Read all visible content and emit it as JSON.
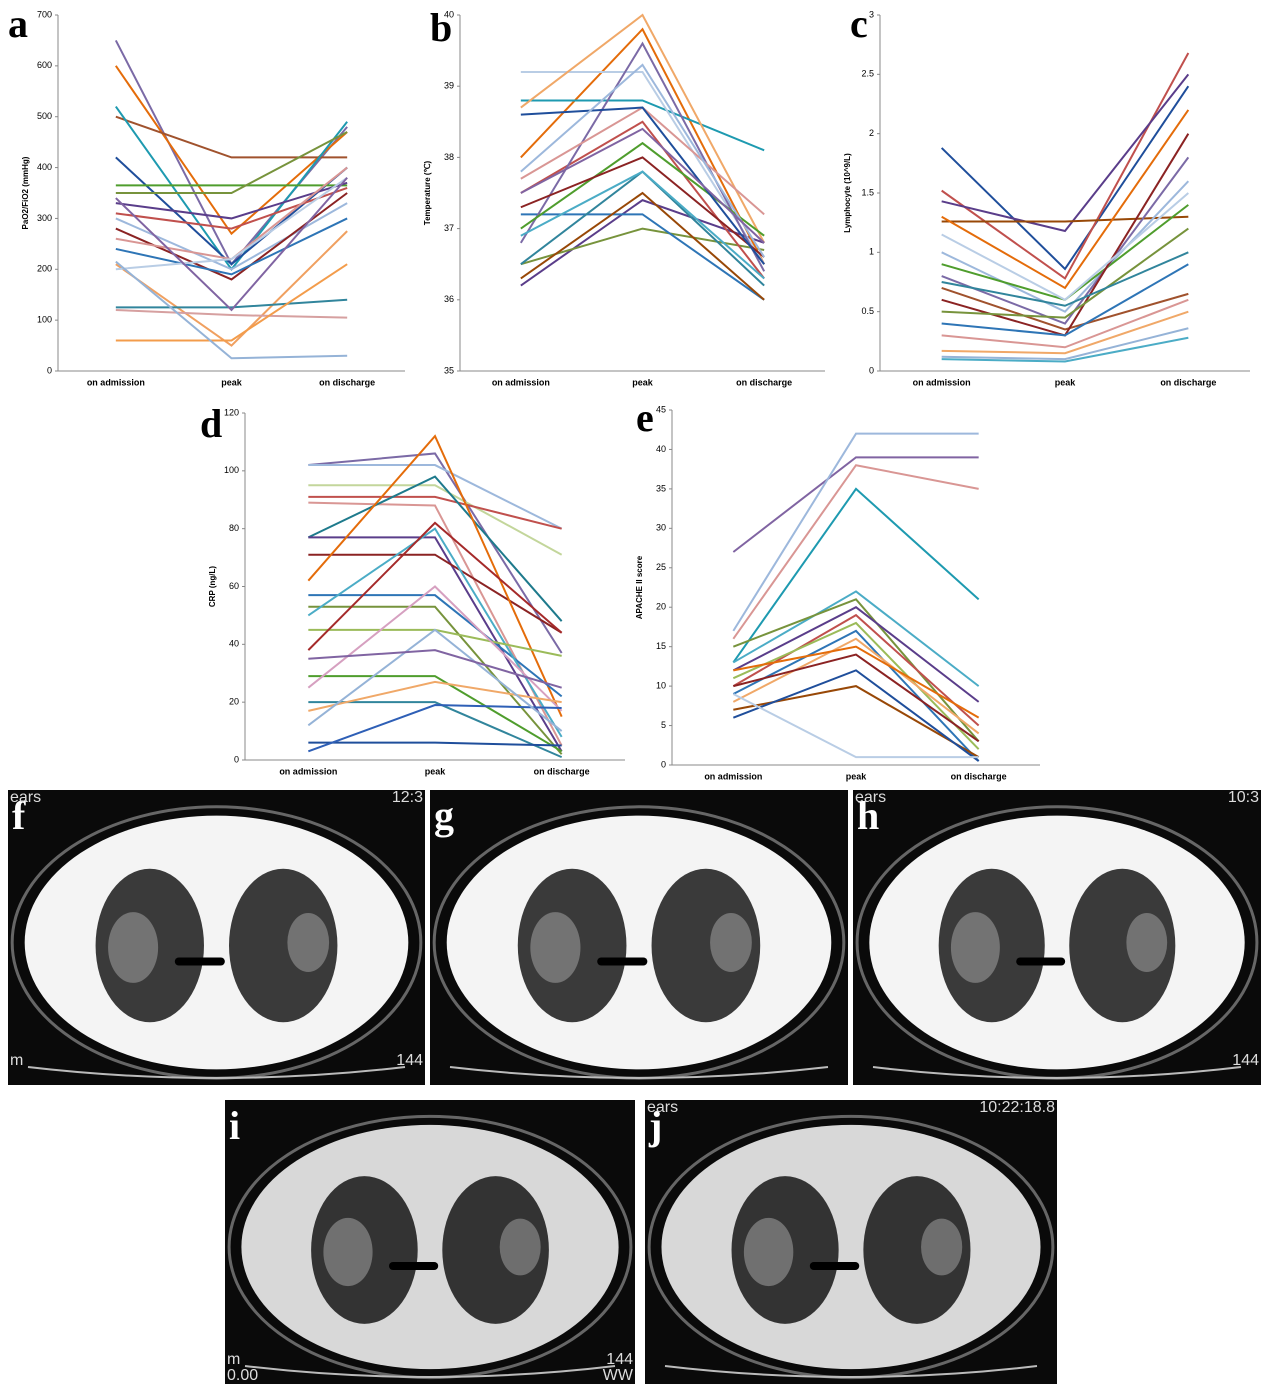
{
  "chart_data": [
    {
      "type": "line",
      "label": "a",
      "ylabel": "PaO2/FiO2 (mmHg)",
      "categories": [
        "on admission",
        "peak",
        "on discharge"
      ],
      "ylim": [
        0,
        700
      ],
      "yticks": [
        0,
        100,
        200,
        300,
        400,
        500,
        600,
        700
      ],
      "series": [
        {
          "color": "#7b6aa6",
          "values": [
            650,
            210,
            480
          ]
        },
        {
          "color": "#e46c0a",
          "values": [
            600,
            270,
            470
          ]
        },
        {
          "color": "#a0522d",
          "values": [
            500,
            420,
            420
          ]
        },
        {
          "color": "#1e9ab0",
          "values": [
            520,
            200,
            490
          ]
        },
        {
          "color": "#1f4e9b",
          "values": [
            420,
            210,
            400
          ]
        },
        {
          "color": "#4f9d2d",
          "values": [
            365,
            365,
            365
          ]
        },
        {
          "color": "#77933c",
          "values": [
            350,
            350,
            470
          ]
        },
        {
          "color": "#5a3d8a",
          "values": [
            330,
            300,
            370
          ]
        },
        {
          "color": "#c0504d",
          "values": [
            310,
            280,
            360
          ]
        },
        {
          "color": "#9db8dc",
          "values": [
            300,
            200,
            330
          ]
        },
        {
          "color": "#8b2323",
          "values": [
            280,
            180,
            350
          ]
        },
        {
          "color": "#d99694",
          "values": [
            260,
            220,
            400
          ]
        },
        {
          "color": "#2e75b6",
          "values": [
            240,
            190,
            300
          ]
        },
        {
          "color": "#f0a060",
          "values": [
            210,
            50,
            275
          ]
        },
        {
          "color": "#b9cde5",
          "values": [
            200,
            220,
            380
          ]
        },
        {
          "color": "#31859c",
          "values": [
            125,
            125,
            140
          ]
        },
        {
          "color": "#d6a0a0",
          "values": [
            120,
            110,
            105
          ]
        },
        {
          "color": "#f39c4b",
          "values": [
            60,
            60,
            210
          ]
        },
        {
          "color": "#95b3d7",
          "values": [
            215,
            25,
            30
          ]
        },
        {
          "color": "#8064a2",
          "values": [
            340,
            120,
            380
          ]
        }
      ]
    },
    {
      "type": "line",
      "label": "b",
      "ylabel": "Temperature (℃)",
      "categories": [
        "on admission",
        "peak",
        "on discharge"
      ],
      "ylim": [
        35,
        40
      ],
      "yticks": [
        35,
        36,
        37,
        38,
        39,
        40
      ],
      "series": [
        {
          "color": "#5a3d8a",
          "values": [
            36.2,
            37.4,
            36.8
          ]
        },
        {
          "color": "#77933c",
          "values": [
            36.5,
            37,
            36.7
          ]
        },
        {
          "color": "#e46c0a",
          "values": [
            38,
            39.8,
            36.5
          ]
        },
        {
          "color": "#c0504d",
          "values": [
            37.5,
            38.5,
            36.3
          ]
        },
        {
          "color": "#1e9ab0",
          "values": [
            38.8,
            38.8,
            38.1
          ]
        },
        {
          "color": "#b9cde5",
          "values": [
            39.2,
            39.2,
            36.5
          ]
        },
        {
          "color": "#2e75b6",
          "values": [
            37.2,
            37.2,
            36
          ]
        },
        {
          "color": "#f0a868",
          "values": [
            38.7,
            40,
            36.8
          ]
        },
        {
          "color": "#7b6aa6",
          "values": [
            36.8,
            39.6,
            36.4
          ]
        },
        {
          "color": "#4f9d2d",
          "values": [
            37,
            38.2,
            36.9
          ]
        },
        {
          "color": "#d99694",
          "values": [
            37.7,
            38.7,
            37.2
          ]
        },
        {
          "color": "#31859c",
          "values": [
            36.5,
            37.8,
            36.2
          ]
        },
        {
          "color": "#8b2323",
          "values": [
            37.3,
            38,
            36.6
          ]
        },
        {
          "color": "#1f4e9b",
          "values": [
            38.6,
            38.7,
            36.5
          ]
        },
        {
          "color": "#984807",
          "values": [
            36.3,
            37.5,
            36
          ]
        },
        {
          "color": "#9db8dc",
          "values": [
            37.8,
            39.3,
            36.6
          ]
        },
        {
          "color": "#8064a2",
          "values": [
            37.5,
            38.4,
            36.8
          ]
        },
        {
          "color": "#4bacc6",
          "values": [
            36.9,
            37.8,
            36.3
          ]
        }
      ]
    },
    {
      "type": "line",
      "label": "c",
      "ylabel": "Lymphocyte (10^9/L)",
      "categories": [
        "on admission",
        "peak",
        "on discharge"
      ],
      "ylim": [
        0,
        3
      ],
      "yticks": [
        0,
        0.5,
        1,
        1.5,
        2,
        2.5,
        3
      ],
      "series": [
        {
          "color": "#1f4e9b",
          "values": [
            1.88,
            0.86,
            2.4
          ]
        },
        {
          "color": "#c0504d",
          "values": [
            1.52,
            0.78,
            2.68
          ]
        },
        {
          "color": "#5a3d8a",
          "values": [
            1.43,
            1.18,
            2.5
          ]
        },
        {
          "color": "#984807",
          "values": [
            1.26,
            1.26,
            1.3
          ]
        },
        {
          "color": "#e46c0a",
          "values": [
            1.3,
            0.7,
            2.2
          ]
        },
        {
          "color": "#9db8dc",
          "values": [
            1,
            0.5,
            1.6
          ]
        },
        {
          "color": "#4f9d2d",
          "values": [
            0.9,
            0.6,
            1.4
          ]
        },
        {
          "color": "#7b6aa6",
          "values": [
            0.8,
            0.4,
            1.8
          ]
        },
        {
          "color": "#a0522d",
          "values": [
            0.7,
            0.35,
            0.65
          ]
        },
        {
          "color": "#8b2323",
          "values": [
            0.6,
            0.3,
            2
          ]
        },
        {
          "color": "#77933c",
          "values": [
            0.5,
            0.45,
            1.2
          ]
        },
        {
          "color": "#2e75b6",
          "values": [
            0.4,
            0.3,
            0.9
          ]
        },
        {
          "color": "#d99694",
          "values": [
            0.3,
            0.2,
            0.6
          ]
        },
        {
          "color": "#f0a868",
          "values": [
            0.17,
            0.15,
            0.5
          ]
        },
        {
          "color": "#4bacc6",
          "values": [
            0.1,
            0.08,
            0.28
          ]
        },
        {
          "color": "#95b3d7",
          "values": [
            0.12,
            0.1,
            0.36
          ]
        },
        {
          "color": "#31859c",
          "values": [
            0.75,
            0.55,
            1
          ]
        },
        {
          "color": "#b9cde5",
          "values": [
            1.15,
            0.6,
            1.5
          ]
        }
      ]
    },
    {
      "type": "line",
      "label": "d",
      "ylabel": "CRP (ng/L)",
      "categories": [
        "on admission",
        "peak",
        "on discharge"
      ],
      "ylim": [
        0,
        120
      ],
      "yticks": [
        0,
        20,
        40,
        60,
        80,
        100,
        120
      ],
      "series": [
        {
          "color": "#7b6aa6",
          "values": [
            102,
            106,
            37
          ]
        },
        {
          "color": "#9db8dc",
          "values": [
            102,
            102,
            80
          ]
        },
        {
          "color": "#c3d69b",
          "values": [
            95,
            95,
            71
          ]
        },
        {
          "color": "#c0504d",
          "values": [
            91,
            91,
            80
          ]
        },
        {
          "color": "#d99694",
          "values": [
            89,
            88,
            5
          ]
        },
        {
          "color": "#1e7a8c",
          "values": [
            77,
            98,
            48
          ]
        },
        {
          "color": "#5a3d8a",
          "values": [
            77,
            77,
            3
          ]
        },
        {
          "color": "#8b2323",
          "values": [
            71,
            71,
            44
          ]
        },
        {
          "color": "#e46c0a",
          "values": [
            62,
            112,
            15
          ]
        },
        {
          "color": "#2e75b6",
          "values": [
            57,
            57,
            22
          ]
        },
        {
          "color": "#77933c",
          "values": [
            53,
            53,
            2
          ]
        },
        {
          "color": "#4bacc6",
          "values": [
            50,
            80,
            8
          ]
        },
        {
          "color": "#9bbb59",
          "values": [
            45,
            45,
            36
          ]
        },
        {
          "color": "#a52a2a",
          "values": [
            38,
            82,
            44
          ]
        },
        {
          "color": "#4f9d2d",
          "values": [
            29,
            29,
            3
          ]
        },
        {
          "color": "#d6a0c0",
          "values": [
            25,
            60,
            17
          ]
        },
        {
          "color": "#31859c",
          "values": [
            20,
            20,
            1
          ]
        },
        {
          "color": "#f0a868",
          "values": [
            17,
            27,
            20
          ]
        },
        {
          "color": "#1f4e9b",
          "values": [
            6,
            6,
            5
          ]
        },
        {
          "color": "#2e5fb6",
          "values": [
            3,
            19,
            18
          ]
        },
        {
          "color": "#95b3d7",
          "values": [
            12,
            45,
            10
          ]
        },
        {
          "color": "#8064a2",
          "values": [
            35,
            38,
            25
          ]
        }
      ]
    },
    {
      "type": "line",
      "label": "e",
      "ylabel": "APACHE II score",
      "categories": [
        "on admission",
        "peak",
        "on discharge"
      ],
      "ylim": [
        0,
        45
      ],
      "yticks": [
        0,
        5,
        10,
        15,
        20,
        25,
        30,
        35,
        40,
        45
      ],
      "series": [
        {
          "color": "#8064a2",
          "values": [
            27,
            39,
            39
          ]
        },
        {
          "color": "#9db8dc",
          "values": [
            17,
            42,
            42
          ]
        },
        {
          "color": "#d99694",
          "values": [
            16,
            38,
            35
          ]
        },
        {
          "color": "#1e9ab0",
          "values": [
            13,
            35,
            21
          ]
        },
        {
          "color": "#4bacc6",
          "values": [
            13,
            22,
            10
          ]
        },
        {
          "color": "#77933c",
          "values": [
            15,
            21,
            3
          ]
        },
        {
          "color": "#5a3d8a",
          "values": [
            12,
            20,
            8
          ]
        },
        {
          "color": "#c0504d",
          "values": [
            10,
            19,
            5
          ]
        },
        {
          "color": "#9bbb59",
          "values": [
            11,
            18,
            2
          ]
        },
        {
          "color": "#2e75b6",
          "values": [
            9,
            17,
            0.5
          ]
        },
        {
          "color": "#f0a868",
          "values": [
            8,
            16,
            4
          ]
        },
        {
          "color": "#984807",
          "values": [
            7,
            10,
            1
          ]
        },
        {
          "color": "#1f4e9b",
          "values": [
            6,
            12,
            0.5
          ]
        },
        {
          "color": "#b9cde5",
          "values": [
            9,
            1,
            1
          ]
        },
        {
          "color": "#e46c0a",
          "values": [
            12,
            15,
            6
          ]
        },
        {
          "color": "#8b2323",
          "values": [
            10,
            14,
            3
          ]
        }
      ]
    }
  ],
  "ct_panels": [
    {
      "label": "f",
      "top_left": "ears",
      "top_right": "12:3",
      "bottom_left": "m",
      "bottom_right": "144"
    },
    {
      "label": "g"
    },
    {
      "label": "h",
      "top_left": "ears",
      "top_right": "10:3",
      "bottom_right": "144"
    },
    {
      "label": "i",
      "bottom_left": "m",
      "bottom_left_2": "0.00",
      "bottom_right": "144",
      "bottom_right_2": "WW"
    },
    {
      "label": "j",
      "top_left": "ears",
      "top_right": "10:22:18.8"
    }
  ]
}
